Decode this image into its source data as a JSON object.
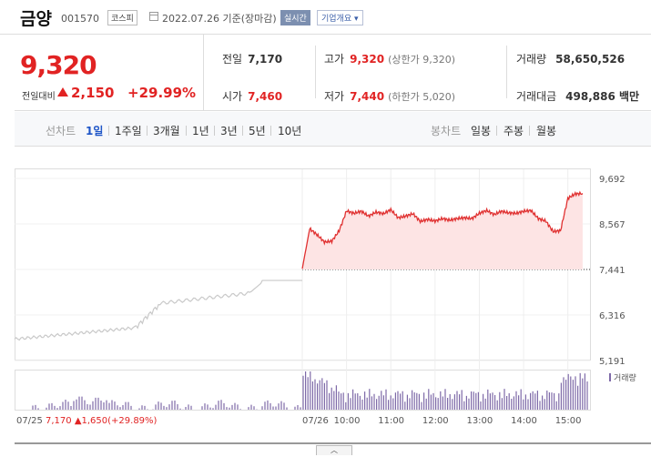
{
  "header": {
    "name": "금양",
    "code": "001570",
    "market": "코스피",
    "base_date": "2022.07.26 기준(장마감)",
    "realtime": "실시간",
    "company_overview": "기업개요 ▾"
  },
  "summary": {
    "current_price": "9,320",
    "diff_label": "전일대비",
    "diff_value": "2,150",
    "diff_rate": "+29.99%",
    "prev_label": "전일",
    "prev_value": "7,170",
    "high_label": "고가",
    "high_value": "9,320",
    "upper_limit": "(상한가 9,320)",
    "volume_label": "거래량",
    "volume_value": "58,650,526",
    "open_label": "시가",
    "open_value": "7,460",
    "low_label": "저가",
    "low_value": "7,440",
    "lower_limit": "(하한가 5,020)",
    "amount_label": "거래대금",
    "amount_value": "498,886 백만"
  },
  "periods": {
    "line_label": "선차트",
    "line_items": [
      "1일",
      "1주일",
      "3개월",
      "1년",
      "3년",
      "5년",
      "10년"
    ],
    "active": "1일",
    "candle_label": "봉차트",
    "candle_items": [
      "일봉",
      "주봉",
      "월봉"
    ]
  },
  "chart_data": {
    "type": "line",
    "y_ticks": [
      "9,692",
      "8,567",
      "7,441",
      "6,316",
      "5,191"
    ],
    "ylim": [
      5191,
      9692
    ],
    "x_labels": [
      "07/25",
      "07/26",
      "10:00",
      "11:00",
      "12:00",
      "13:00",
      "14:00",
      "15:00"
    ],
    "volume_legend": "거래량",
    "prev_day_summary": {
      "date": "07/25",
      "close": "7,170",
      "change": "▲1,650",
      "rate": "(+29.89%)"
    },
    "reference_line": 7441,
    "colors": {
      "today_line": "#e03131",
      "today_fill": "#fde4e4",
      "prev_line": "#c9c9c9",
      "volume": "#7e6aa8"
    },
    "series": [
      {
        "x": [
          "09:00",
          "09:10",
          "09:20",
          "09:30",
          "09:40",
          "09:50",
          "10:00",
          "10:10",
          "10:20",
          "10:30",
          "10:40",
          "10:50",
          "11:00",
          "11:10",
          "11:20",
          "11:30",
          "11:40",
          "11:50",
          "12:00",
          "12:10",
          "12:20",
          "12:30",
          "12:40",
          "12:50",
          "13:00",
          "13:10",
          "13:20",
          "13:30",
          "13:40",
          "13:50",
          "14:00",
          "14:10",
          "14:20",
          "14:30",
          "14:40",
          "14:50",
          "15:00",
          "15:10",
          "15:20"
        ],
        "values": [
          7460,
          8450,
          8300,
          8120,
          8140,
          8400,
          8890,
          8830,
          8880,
          8760,
          8860,
          8820,
          8920,
          8720,
          8760,
          8820,
          8630,
          8680,
          8640,
          8700,
          8660,
          8700,
          8720,
          8700,
          8830,
          8900,
          8800,
          8880,
          8840,
          8830,
          8880,
          8900,
          8700,
          8640,
          8380,
          8400,
          9200,
          9310,
          9320
        ]
      }
    ]
  }
}
